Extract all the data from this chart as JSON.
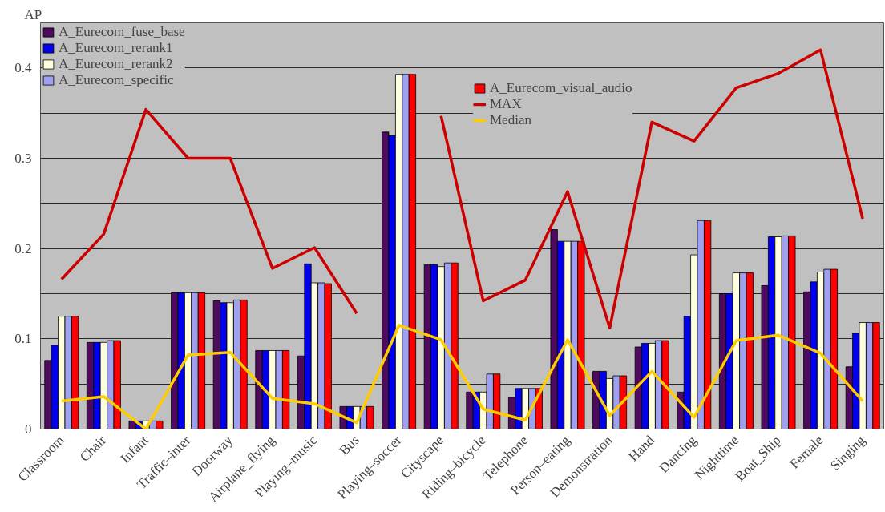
{
  "chart_data": {
    "type": "bar",
    "ylabel": "AP",
    "categories": [
      "Classroom",
      "Chair",
      "Infant",
      "Traffic–inter",
      "Doorway",
      "Airplane_flying",
      "Playing–music",
      "Bus",
      "Playing–soccer",
      "Cityscape",
      "Riding–bicycle",
      "Telephone",
      "Person–eating",
      "Demonstration",
      "Hand",
      "Dancing",
      "Nighttime",
      "Boat_Ship",
      "Female",
      "Singing"
    ],
    "series": [
      {
        "name": "A_Eurecom_fuse_base",
        "color": "#4d0a5e",
        "values": [
          0.076,
          0.096,
          0.009,
          0.151,
          0.142,
          0.087,
          0.081,
          0.025,
          0.329,
          0.182,
          0.041,
          0.035,
          0.221,
          0.064,
          0.091,
          0.041,
          0.15,
          0.159,
          0.152,
          0.069
        ]
      },
      {
        "name": "A_Eurecom_rerank1",
        "color": "#0000ee",
        "values": [
          0.093,
          0.096,
          0.009,
          0.151,
          0.14,
          0.087,
          0.183,
          0.025,
          0.325,
          0.182,
          0.041,
          0.045,
          0.208,
          0.064,
          0.095,
          0.125,
          0.15,
          0.213,
          0.163,
          0.106
        ]
      },
      {
        "name": "A_Eurecom_rerank2",
        "color": "#ffffdd",
        "values": [
          0.125,
          0.096,
          0.009,
          0.151,
          0.14,
          0.087,
          0.162,
          0.025,
          0.393,
          0.18,
          0.041,
          0.045,
          0.208,
          0.056,
          0.095,
          0.193,
          0.173,
          0.213,
          0.174,
          0.118
        ]
      },
      {
        "name": "A_Eurecom_specific",
        "color": "#a0a0f0",
        "values": [
          0.125,
          0.098,
          0.009,
          0.151,
          0.143,
          0.087,
          0.162,
          0.025,
          0.393,
          0.184,
          0.061,
          0.045,
          0.208,
          0.059,
          0.098,
          0.231,
          0.173,
          0.214,
          0.177,
          0.118
        ]
      },
      {
        "name": "A_Eurecom_visual_audio",
        "color": "#ff0000",
        "values": [
          0.125,
          0.098,
          0.009,
          0.151,
          0.143,
          0.087,
          0.161,
          0.025,
          0.393,
          0.184,
          0.061,
          0.045,
          0.208,
          0.059,
          0.098,
          0.231,
          0.173,
          0.214,
          0.177,
          0.118
        ]
      },
      {
        "name": "MAX",
        "type": "line",
        "color": "#cc0000",
        "values": [
          0.166,
          0.216,
          0.354,
          0.3,
          0.3,
          0.178,
          0.201,
          0.128,
          null,
          0.347,
          0.142,
          0.165,
          0.263,
          0.112,
          0.34,
          0.319,
          0.378,
          0.394,
          0.42,
          0.233
        ]
      },
      {
        "name": "Median",
        "type": "line",
        "color": "#ffcc00",
        "values": [
          0.031,
          0.036,
          0.0,
          0.082,
          0.085,
          0.034,
          0.028,
          0.007,
          0.115,
          0.099,
          0.022,
          0.01,
          0.099,
          0.015,
          0.064,
          0.013,
          0.098,
          0.104,
          0.084,
          0.031
        ]
      }
    ],
    "ylim": [
      0,
      0.45
    ],
    "yticks": [
      0,
      {
        "value": 0.05,
        "label": null
      },
      0.1,
      {
        "value": 0.15,
        "label": null
      },
      0.2,
      {
        "value": 0.25,
        "label": null
      },
      0.3,
      {
        "value": 0.35,
        "label": null
      },
      0.4
    ],
    "grid": "y",
    "legend": "top left"
  }
}
